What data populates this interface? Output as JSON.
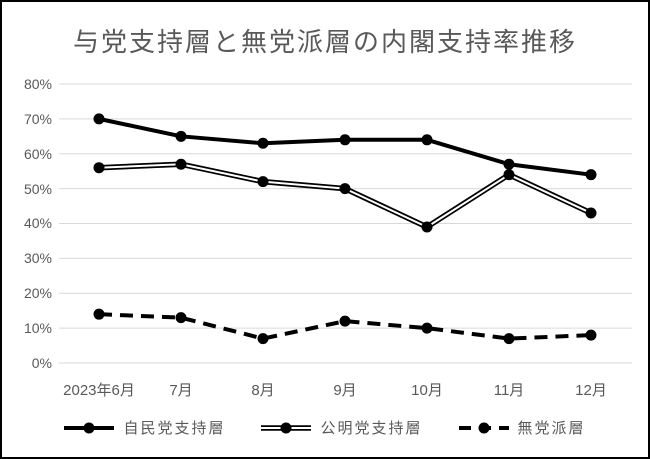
{
  "title": "与党支持層と無党派層の内閣支持率推移",
  "chart_data": {
    "type": "line",
    "categories": [
      "2023年6月",
      "7月",
      "8月",
      "9月",
      "10月",
      "11月",
      "12月"
    ],
    "series": [
      {
        "name": "自民党支持層",
        "values": [
          70,
          65,
          63,
          64,
          64,
          57,
          54
        ],
        "line_style": "thick-solid"
      },
      {
        "name": "公明党支持層",
        "values": [
          56,
          57,
          52,
          50,
          39,
          54,
          43
        ],
        "line_style": "double"
      },
      {
        "name": "無党派層",
        "values": [
          14,
          13,
          7,
          12,
          10,
          7,
          8
        ],
        "line_style": "dashed"
      }
    ],
    "ylim": [
      0,
      80
    ],
    "ytick_step": 10,
    "ytick_labels": [
      "80%",
      "70%",
      "60%",
      "50%",
      "40%",
      "30%",
      "20%",
      "10%",
      "0%"
    ],
    "grid": true,
    "legend_position": "bottom",
    "colors": {
      "series_line": "#000000",
      "grid": "#d9d9d9",
      "text": "#595959",
      "background": "#ffffff",
      "frame_border": "#000000"
    }
  },
  "legend": {
    "items": [
      {
        "label": "自民党支持層"
      },
      {
        "label": "公明党支持層"
      },
      {
        "label": "無党派層"
      }
    ]
  }
}
